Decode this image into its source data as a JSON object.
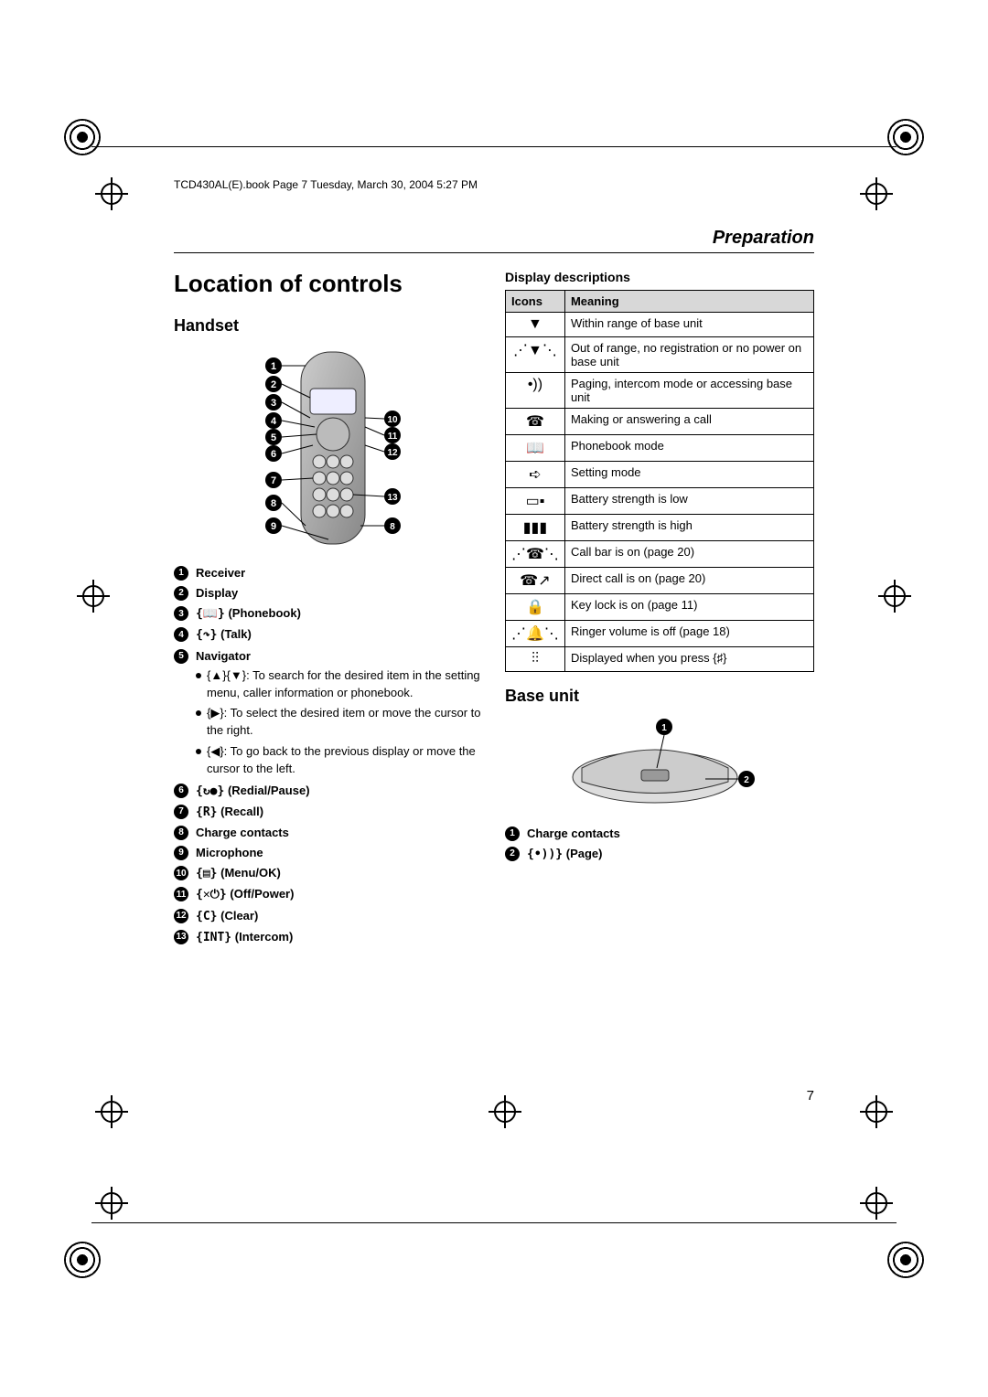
{
  "file_info": "TCD430AL(E).book  Page 7  Tuesday, March 30, 2004  5:27 PM",
  "section_header": "Preparation",
  "page_title": "Location of controls",
  "handset": {
    "heading": "Handset",
    "items": [
      {
        "n": "1",
        "label": "Receiver"
      },
      {
        "n": "2",
        "label": "Display"
      },
      {
        "n": "3",
        "sym": "{📖}",
        "label": "(Phonebook)"
      },
      {
        "n": "4",
        "sym": "{↷}",
        "label": "(Talk)"
      },
      {
        "n": "5",
        "label": "Navigator"
      },
      {
        "n": "6",
        "sym": "{↻●}",
        "label": "(Redial/Pause)"
      },
      {
        "n": "7",
        "sym": "{R}",
        "label": "(Recall)"
      },
      {
        "n": "8",
        "label": "Charge contacts"
      },
      {
        "n": "9",
        "label": "Microphone"
      },
      {
        "n": "10",
        "sym": "{▤}",
        "label": "(Menu/OK)"
      },
      {
        "n": "11",
        "sym": "{✕⏻}",
        "label": "(Off/Power)"
      },
      {
        "n": "12",
        "sym": "{C}",
        "label": "(Clear)"
      },
      {
        "n": "13",
        "sym": "{INT}",
        "label": "(Intercom)"
      }
    ],
    "nav_bullets": [
      "{▲}{▼}: To search for the desired item in the setting menu, caller information or phonebook.",
      "{▶}: To select the desired item or move the cursor to the right.",
      "{◀}: To go back to the previous display or move the cursor to the left."
    ]
  },
  "display_descriptions": {
    "heading": "Display descriptions",
    "columns": [
      "Icons",
      "Meaning"
    ],
    "rows": [
      {
        "icon": "▼",
        "meaning": "Within range of base unit"
      },
      {
        "icon": "⋰▼⋱",
        "meaning": "Out of range, no registration or no power on base unit"
      },
      {
        "icon": "•))",
        "meaning": "Paging, intercom mode or accessing base unit"
      },
      {
        "icon": "☎",
        "meaning": "Making or answering a call"
      },
      {
        "icon": "📖",
        "meaning": "Phonebook mode"
      },
      {
        "icon": "➪",
        "meaning": "Setting mode"
      },
      {
        "icon": "▭▪",
        "meaning": "Battery strength is low"
      },
      {
        "icon": "▮▮▮",
        "meaning": "Battery strength is high"
      },
      {
        "icon": "⋰☎⋱",
        "meaning": "Call bar is on (page 20)"
      },
      {
        "icon": "☎↗",
        "meaning": "Direct call is on (page 20)"
      },
      {
        "icon": "🔒",
        "meaning": "Key lock is on (page 11)"
      },
      {
        "icon": "⋰🔔⋱",
        "meaning": "Ringer volume is off (page 18)"
      },
      {
        "icon": "⫶⫶",
        "meaning": "Displayed when you press {♯}"
      }
    ]
  },
  "base_unit": {
    "heading": "Base unit",
    "items": [
      {
        "n": "1",
        "label": "Charge contacts"
      },
      {
        "n": "2",
        "sym": "{•))}",
        "label": "(Page)"
      }
    ]
  },
  "page_number": "7",
  "colors": {
    "bg": "#ffffff",
    "text": "#000000",
    "th_bg": "#d8d8d8",
    "border": "#000000"
  }
}
